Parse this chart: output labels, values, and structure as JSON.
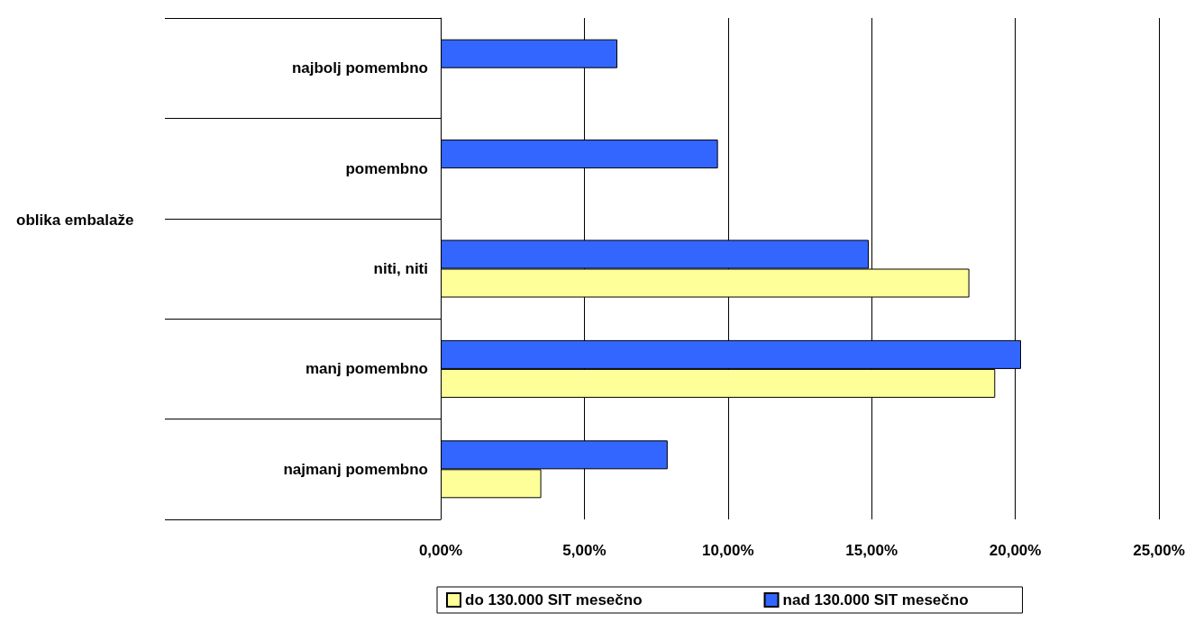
{
  "chart_data": {
    "type": "bar",
    "orientation": "horizontal",
    "annotations": [
      "oblika embalaže"
    ],
    "categories": [
      "najbolj pomembno",
      "pomembno",
      "niti, niti",
      "manj pomembno",
      "najmanj pomembno"
    ],
    "series": [
      {
        "name": "do 130.000 SIT mesečno",
        "color": "#ffff99",
        "values": [
          null,
          null,
          18.4,
          19.3,
          3.5
        ]
      },
      {
        "name": "nad 130.000 SIT mesečno",
        "color": "#3366ff",
        "values": [
          6.15,
          9.65,
          14.9,
          20.2,
          7.9
        ]
      }
    ],
    "xlim": [
      0,
      25
    ],
    "xticks": [
      {
        "value": 0,
        "label": "0,00%"
      },
      {
        "value": 5,
        "label": "5,00%"
      },
      {
        "value": 10,
        "label": "10,00%"
      },
      {
        "value": 15,
        "label": "15,00%"
      },
      {
        "value": 20,
        "label": "20,00%"
      },
      {
        "value": 25,
        "label": "25,00%"
      }
    ],
    "grid": "x",
    "legend": "bottom"
  }
}
